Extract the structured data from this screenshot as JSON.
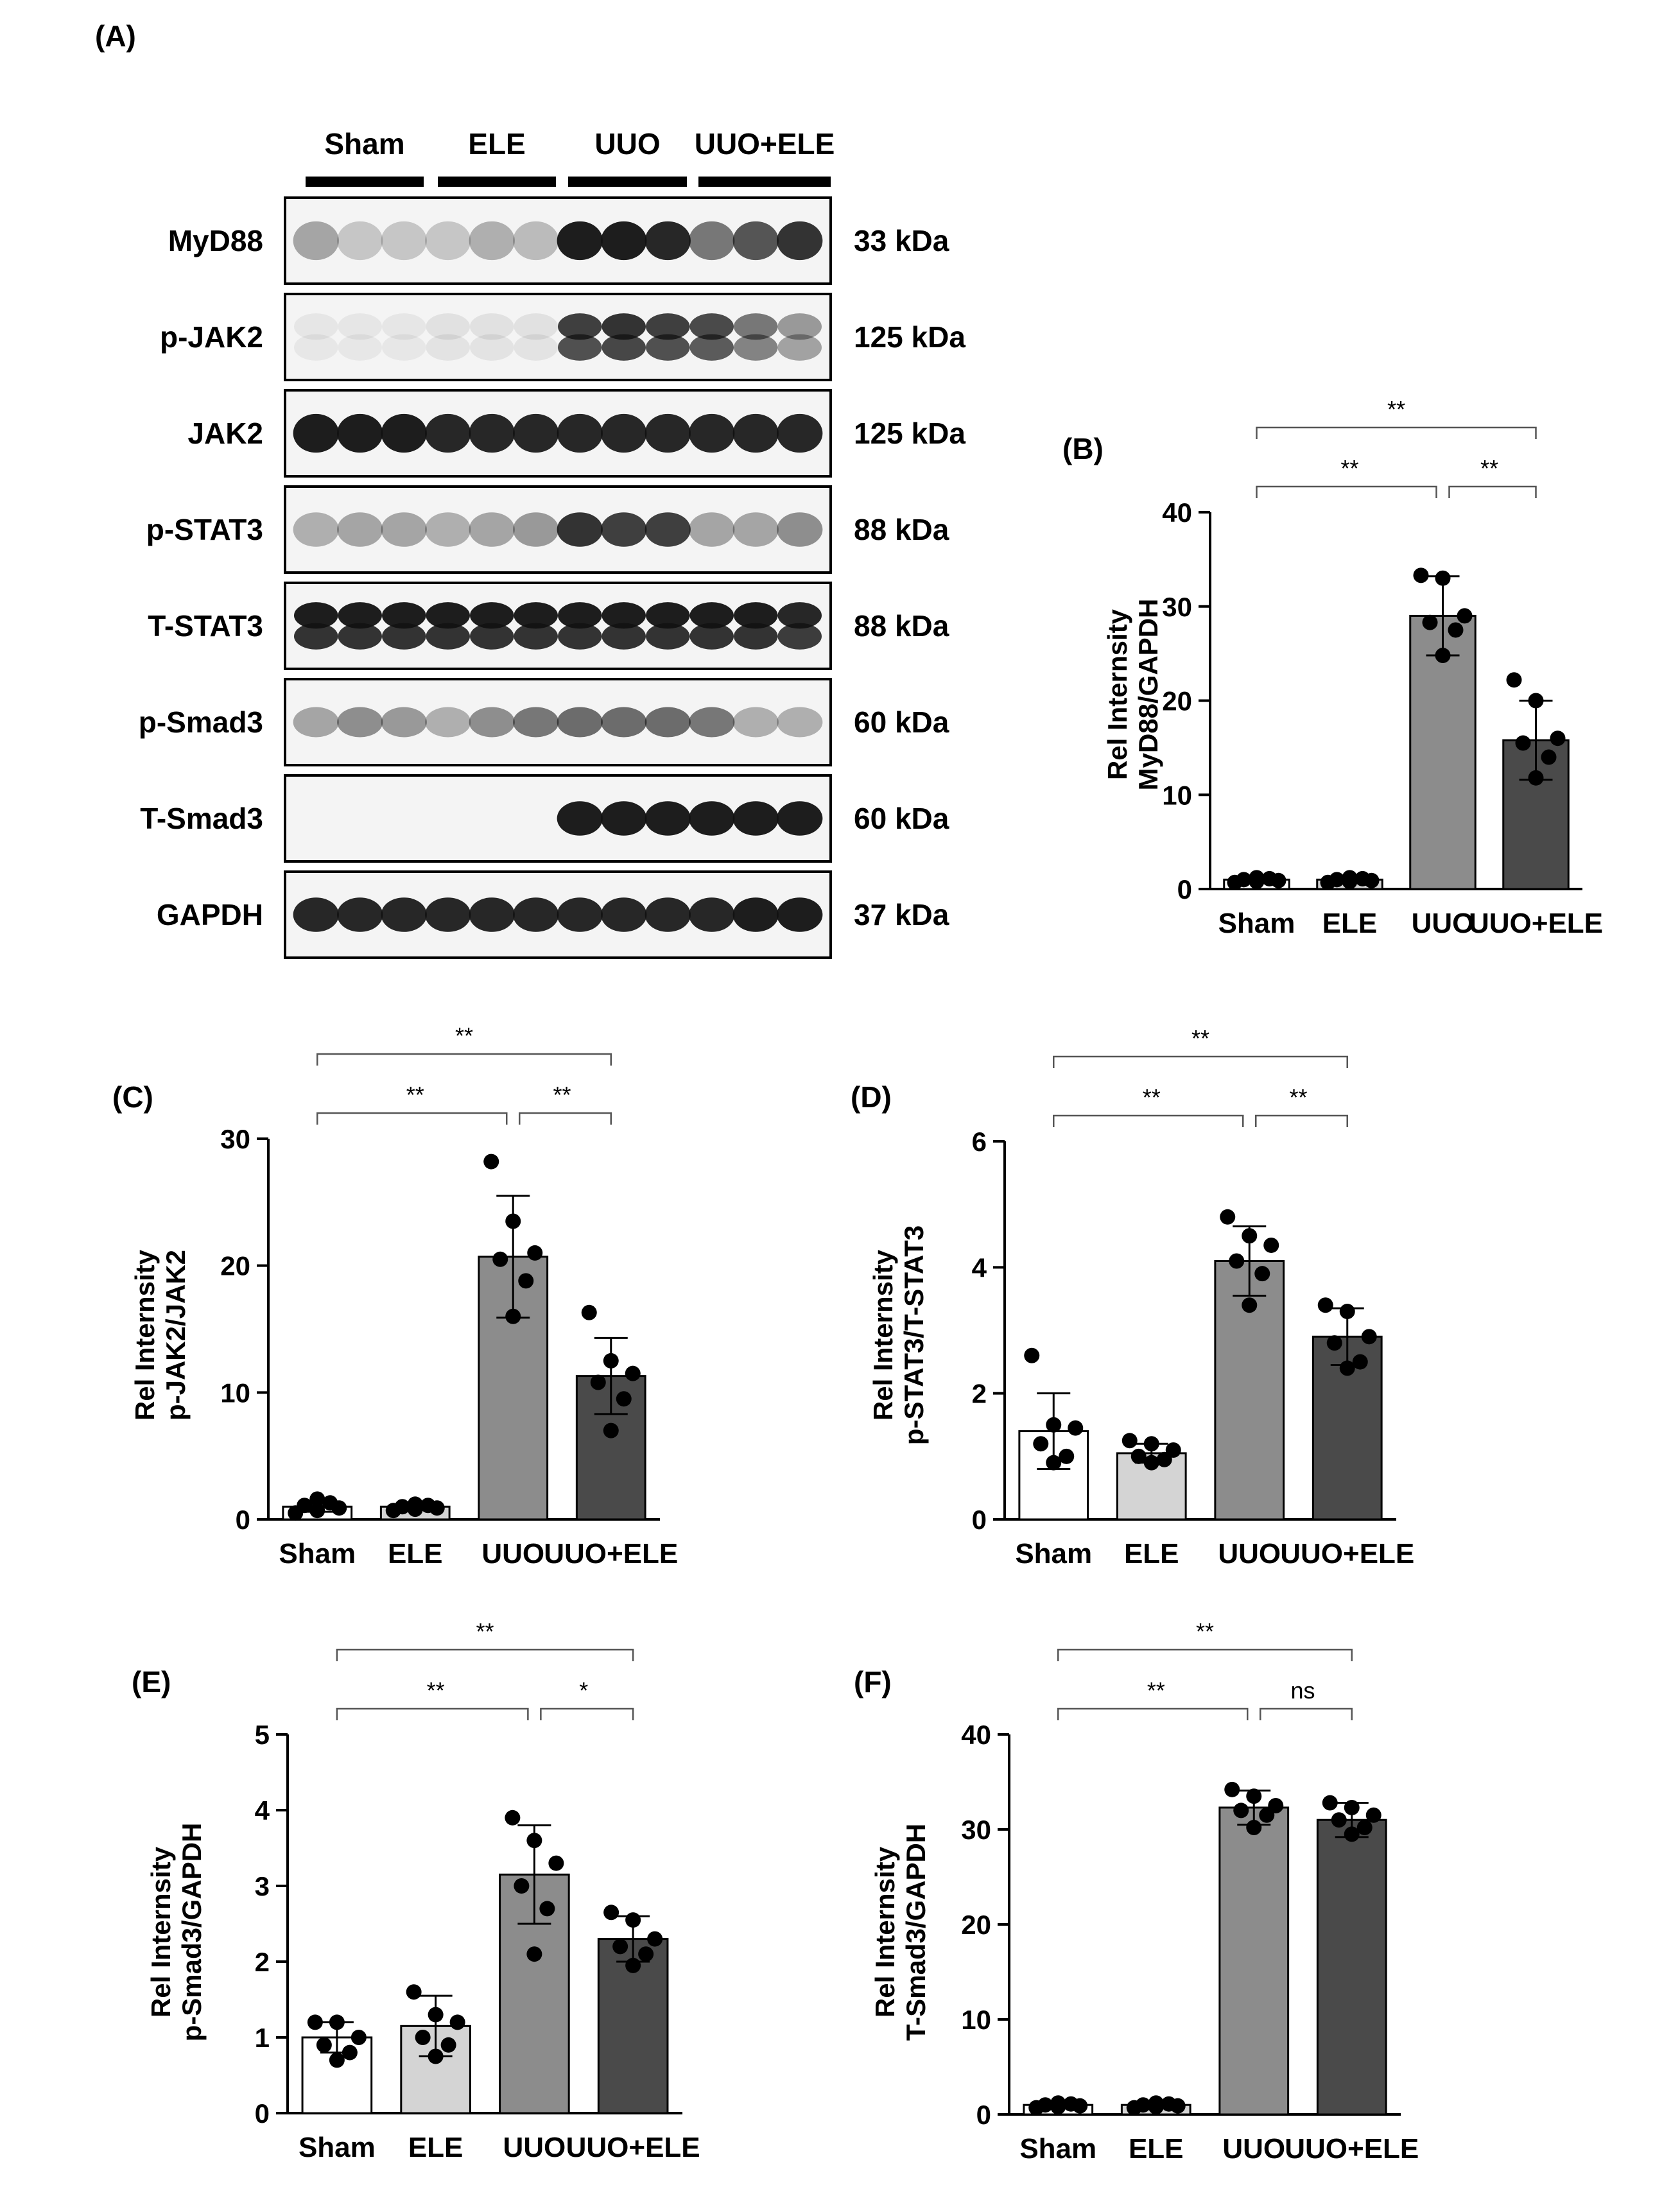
{
  "panel_a": {
    "label": "(A)",
    "groups": [
      "Sham",
      "ELE",
      "UUO",
      "UUO+ELE"
    ],
    "blots": [
      {
        "name": "MyD88",
        "size": "33 kDa",
        "intensity": [
          0.35,
          0.2,
          0.2,
          0.2,
          0.3,
          0.25,
          0.95,
          0.95,
          0.9,
          0.55,
          0.7,
          0.85
        ],
        "band_height": 0.45,
        "double": false
      },
      {
        "name": "p-JAK2",
        "size": "125 kDa",
        "intensity": [
          0.06,
          0.06,
          0.06,
          0.08,
          0.08,
          0.08,
          0.8,
          0.85,
          0.8,
          0.75,
          0.55,
          0.4
        ],
        "band_height": 0.55,
        "double": true
      },
      {
        "name": "JAK2",
        "size": "125 kDa",
        "intensity": [
          0.95,
          0.95,
          0.95,
          0.9,
          0.9,
          0.9,
          0.9,
          0.9,
          0.9,
          0.9,
          0.9,
          0.9
        ],
        "band_height": 0.45,
        "double": false
      },
      {
        "name": "p-STAT3",
        "size": "88 kDa",
        "intensity": [
          0.3,
          0.35,
          0.35,
          0.3,
          0.35,
          0.4,
          0.85,
          0.8,
          0.8,
          0.35,
          0.35,
          0.45
        ],
        "band_height": 0.4,
        "double": false
      },
      {
        "name": "T-STAT3",
        "size": "88 kDa",
        "intensity": [
          0.95,
          0.95,
          0.95,
          0.95,
          0.95,
          0.95,
          0.95,
          0.95,
          0.95,
          0.95,
          0.95,
          0.9
        ],
        "band_height": 0.55,
        "double": true
      },
      {
        "name": "p-Smad3",
        "size": "60 kDa",
        "intensity": [
          0.35,
          0.45,
          0.4,
          0.3,
          0.45,
          0.55,
          0.6,
          0.6,
          0.6,
          0.55,
          0.3,
          0.3
        ],
        "band_height": 0.35,
        "double": false
      },
      {
        "name": "T-Smad3",
        "size": "60 kDa",
        "intensity": [
          0.0,
          0.0,
          0.0,
          0.0,
          0.0,
          0.0,
          0.95,
          0.95,
          0.95,
          0.95,
          0.95,
          0.95
        ],
        "band_height": 0.4,
        "double": false
      },
      {
        "name": "GAPDH",
        "size": "37 kDa",
        "intensity": [
          0.9,
          0.9,
          0.9,
          0.9,
          0.9,
          0.9,
          0.9,
          0.9,
          0.9,
          0.9,
          0.95,
          0.95
        ],
        "band_height": 0.4,
        "double": false
      }
    ]
  },
  "chart_data": [
    {
      "panel": "(B)",
      "type": "bar",
      "ylabel_lines": [
        "Rel Internsity",
        "MyD88/GAPDH"
      ],
      "categories": [
        "Sham",
        "ELE",
        "UUO",
        "UUO+ELE"
      ],
      "values": [
        1.0,
        1.0,
        29.0,
        15.8
      ],
      "errors": [
        0.2,
        0.2,
        4.2,
        4.2
      ],
      "points": [
        [
          0.7,
          0.8,
          0.9,
          1.0,
          1.1,
          1.2
        ],
        [
          0.7,
          0.8,
          0.9,
          1.0,
          1.1,
          1.2
        ],
        [
          33.3,
          33.0,
          29.0,
          28.3,
          27.5,
          24.8
        ],
        [
          22.2,
          20.0,
          16.0,
          15.5,
          14.0,
          11.8
        ]
      ],
      "ylim": [
        0,
        40
      ],
      "yticks": [
        0,
        10,
        20,
        30,
        40
      ],
      "bar_colors": [
        "#ffffff",
        "#d4d4d4",
        "#8c8c8c",
        "#4a4a4a"
      ],
      "comparisons": [
        {
          "from": 0,
          "to": 3,
          "label": "**",
          "level": 1
        },
        {
          "from": 0,
          "to": 2,
          "label": "**",
          "level": 0
        },
        {
          "from": 2,
          "to": 3,
          "label": "**",
          "level": 0
        }
      ]
    },
    {
      "panel": "(C)",
      "type": "bar",
      "ylabel_lines": [
        "Rel Internsity",
        "p-JAK2/JAK2"
      ],
      "categories": [
        "Sham",
        "ELE",
        "UUO",
        "UUO+ELE"
      ],
      "values": [
        1.0,
        1.0,
        20.7,
        11.3
      ],
      "errors": [
        0.4,
        0.2,
        4.8,
        3.0
      ],
      "points": [
        [
          0.5,
          0.7,
          0.9,
          1.1,
          1.3,
          1.6
        ],
        [
          0.7,
          0.8,
          0.9,
          1.0,
          1.1,
          1.2
        ],
        [
          28.2,
          23.5,
          21.0,
          20.5,
          18.8,
          16.0
        ],
        [
          16.3,
          12.5,
          11.5,
          10.8,
          9.5,
          7.0
        ]
      ],
      "ylim": [
        0,
        30
      ],
      "yticks": [
        0,
        10,
        20,
        30
      ],
      "bar_colors": [
        "#ffffff",
        "#d4d4d4",
        "#8c8c8c",
        "#4a4a4a"
      ],
      "comparisons": [
        {
          "from": 0,
          "to": 3,
          "label": "**",
          "level": 1
        },
        {
          "from": 0,
          "to": 2,
          "label": "**",
          "level": 0
        },
        {
          "from": 2,
          "to": 3,
          "label": "**",
          "level": 0
        }
      ]
    },
    {
      "panel": "(D)",
      "type": "bar",
      "ylabel_lines": [
        "Rel Internsity",
        "p-STAT3/T-STAT3"
      ],
      "categories": [
        "Sham",
        "ELE",
        "UUO",
        "UUO+ELE"
      ],
      "values": [
        1.4,
        1.05,
        4.1,
        2.9
      ],
      "errors": [
        0.6,
        0.15,
        0.55,
        0.45
      ],
      "points": [
        [
          2.6,
          1.5,
          1.45,
          1.2,
          1.0,
          0.9
        ],
        [
          1.25,
          1.2,
          1.1,
          1.0,
          0.95,
          0.9
        ],
        [
          4.8,
          4.5,
          4.35,
          4.1,
          3.9,
          3.4
        ],
        [
          3.4,
          3.3,
          2.9,
          2.8,
          2.5,
          2.4
        ]
      ],
      "ylim": [
        0,
        6
      ],
      "yticks": [
        0,
        2,
        4,
        6
      ],
      "bar_colors": [
        "#ffffff",
        "#d4d4d4",
        "#8c8c8c",
        "#4a4a4a"
      ],
      "comparisons": [
        {
          "from": 0,
          "to": 3,
          "label": "**",
          "level": 1
        },
        {
          "from": 0,
          "to": 2,
          "label": "**",
          "level": 0
        },
        {
          "from": 2,
          "to": 3,
          "label": "**",
          "level": 0
        }
      ]
    },
    {
      "panel": "(E)",
      "type": "bar",
      "ylabel_lines": [
        "Rel Internsity",
        "p-Smad3/GAPDH"
      ],
      "categories": [
        "Sham",
        "ELE",
        "UUO",
        "UUO+ELE"
      ],
      "values": [
        1.0,
        1.15,
        3.15,
        2.3
      ],
      "errors": [
        0.2,
        0.4,
        0.65,
        0.3
      ],
      "points": [
        [
          1.2,
          1.2,
          1.0,
          0.9,
          0.8,
          0.7
        ],
        [
          1.6,
          1.3,
          1.2,
          1.0,
          0.9,
          0.75
        ],
        [
          3.9,
          3.6,
          3.3,
          3.0,
          2.7,
          2.1
        ],
        [
          2.65,
          2.55,
          2.3,
          2.2,
          2.1,
          1.95
        ]
      ],
      "ylim": [
        0,
        5
      ],
      "yticks": [
        0,
        1,
        2,
        3,
        4,
        5
      ],
      "bar_colors": [
        "#ffffff",
        "#d4d4d4",
        "#8c8c8c",
        "#4a4a4a"
      ],
      "comparisons": [
        {
          "from": 0,
          "to": 3,
          "label": "**",
          "level": 1
        },
        {
          "from": 0,
          "to": 2,
          "label": "**",
          "level": 0
        },
        {
          "from": 2,
          "to": 3,
          "label": "*",
          "level": 0
        }
      ]
    },
    {
      "panel": "(F)",
      "type": "bar",
      "ylabel_lines": [
        "Rel Internsity",
        "T-Smad3/GAPDH"
      ],
      "categories": [
        "Sham",
        "ELE",
        "UUO",
        "UUO+ELE"
      ],
      "values": [
        1.0,
        1.0,
        32.3,
        31.0
      ],
      "errors": [
        0.2,
        0.2,
        1.8,
        1.8
      ],
      "points": [
        [
          0.7,
          0.8,
          0.9,
          1.0,
          1.1,
          1.2
        ],
        [
          0.7,
          0.8,
          0.9,
          1.0,
          1.1,
          1.2
        ],
        [
          34.2,
          33.5,
          32.5,
          32.0,
          31.5,
          30.2
        ],
        [
          32.8,
          32.3,
          31.5,
          31.0,
          30.2,
          29.5
        ]
      ],
      "ylim": [
        0,
        40
      ],
      "yticks": [
        0,
        10,
        20,
        30,
        40
      ],
      "bar_colors": [
        "#ffffff",
        "#d4d4d4",
        "#8c8c8c",
        "#4a4a4a"
      ],
      "comparisons": [
        {
          "from": 0,
          "to": 3,
          "label": "**",
          "level": 1
        },
        {
          "from": 0,
          "to": 2,
          "label": "**",
          "level": 0
        },
        {
          "from": 2,
          "to": 3,
          "label": "ns",
          "level": 0
        }
      ]
    }
  ]
}
